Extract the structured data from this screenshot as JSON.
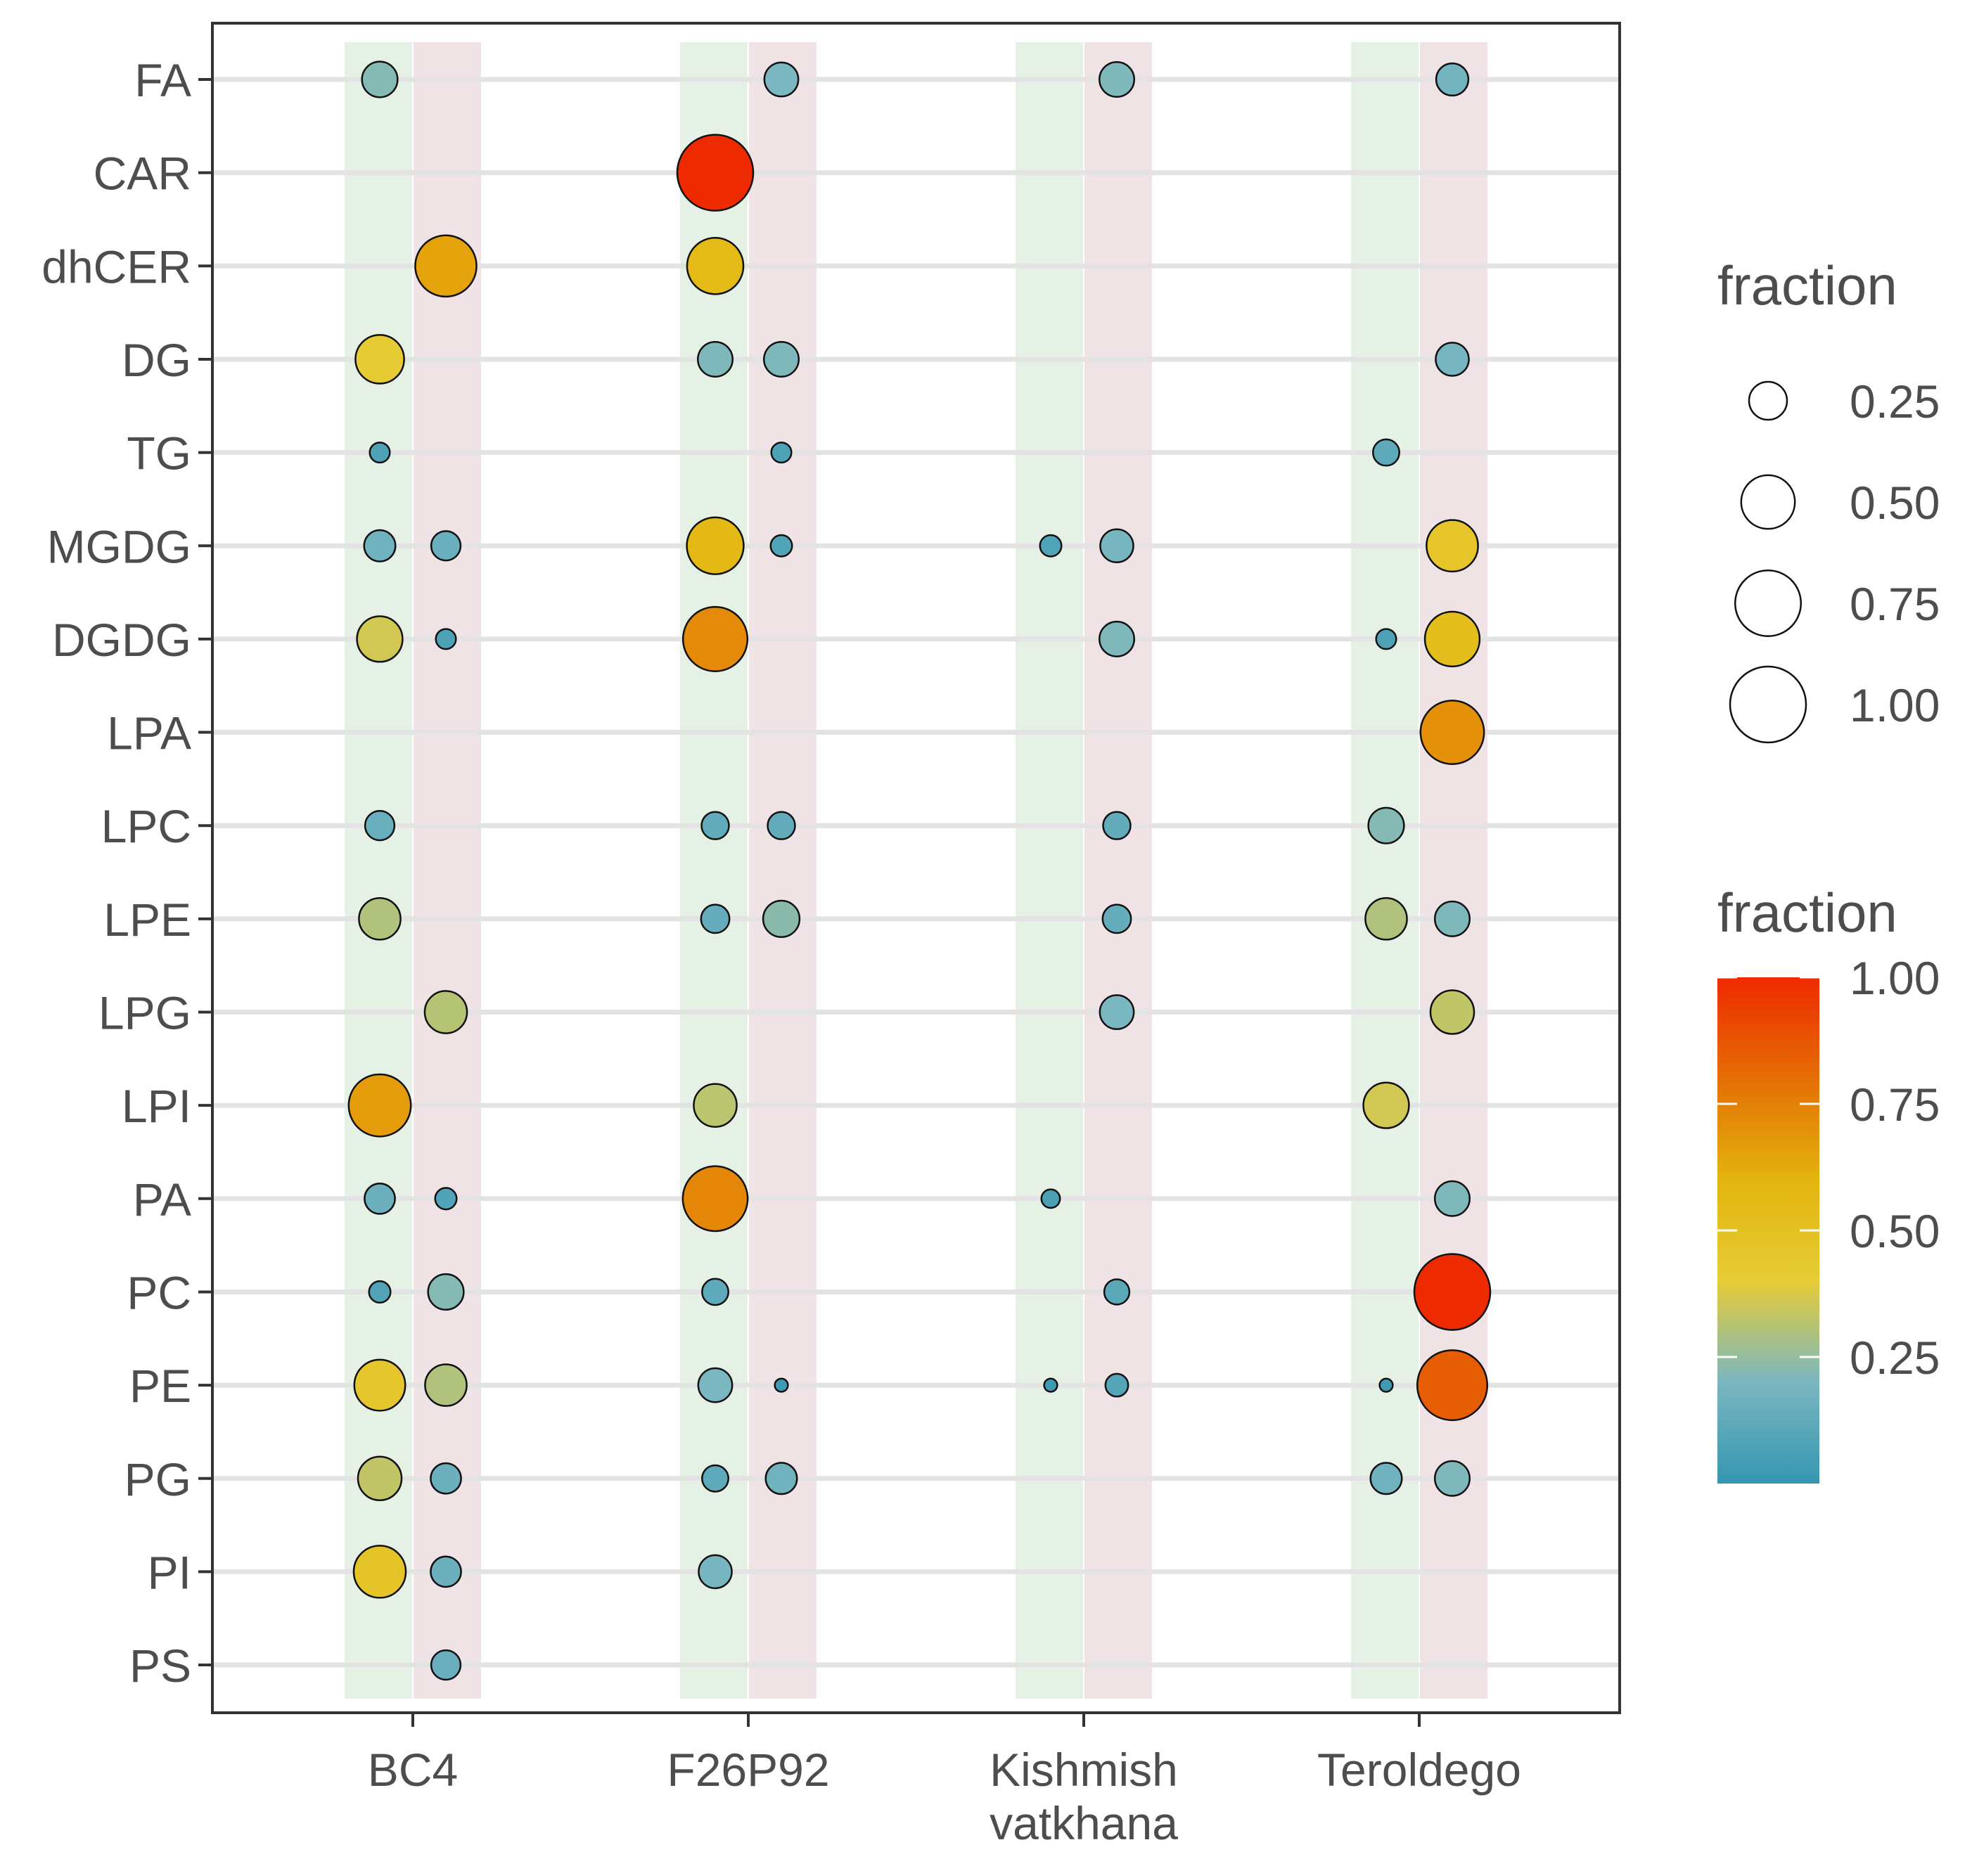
{
  "chart_data": {
    "type": "scatter",
    "title": "",
    "xlabel": "",
    "ylabel": "",
    "x_categories": [
      "BC4",
      "F26P92",
      "Kishmish vatkhana",
      "Teroldego"
    ],
    "x_tick_lines": [
      [
        "BC4"
      ],
      [
        "F26P92"
      ],
      [
        "Kishmish",
        "vatkhana"
      ],
      [
        "Teroldego"
      ]
    ],
    "y_categories": [
      "FA",
      "CAR",
      "dhCER",
      "DG",
      "TG",
      "MGDG",
      "DGDG",
      "LPA",
      "LPC",
      "LPE",
      "LPG",
      "LPI",
      "PA",
      "PC",
      "PE",
      "PG",
      "PI",
      "PS"
    ],
    "subgroups": [
      "left",
      "right"
    ],
    "subgroup_band_colors": {
      "left": "#e6f1e6",
      "right": "#f0e3e5"
    },
    "series": [
      {
        "x": "BC4",
        "sub": "left",
        "points": [
          {
            "y": "FA",
            "fraction": 0.22
          },
          {
            "y": "DG",
            "fraction": 0.41
          },
          {
            "y": "TG",
            "fraction": 0.07
          },
          {
            "y": "MGDG",
            "fraction": 0.17
          },
          {
            "y": "DGDG",
            "fraction": 0.36
          },
          {
            "y": "LPC",
            "fraction": 0.15
          },
          {
            "y": "LPE",
            "fraction": 0.3
          },
          {
            "y": "LPI",
            "fraction": 0.67
          },
          {
            "y": "PA",
            "fraction": 0.16
          },
          {
            "y": "PC",
            "fraction": 0.08
          },
          {
            "y": "PE",
            "fraction": 0.45
          },
          {
            "y": "PG",
            "fraction": 0.33
          },
          {
            "y": "PI",
            "fraction": 0.47
          }
        ]
      },
      {
        "x": "BC4",
        "sub": "right",
        "points": [
          {
            "y": "dhCER",
            "fraction": 0.65
          },
          {
            "y": "MGDG",
            "fraction": 0.15
          },
          {
            "y": "DGDG",
            "fraction": 0.07
          },
          {
            "y": "LPG",
            "fraction": 0.31
          },
          {
            "y": "PA",
            "fraction": 0.08
          },
          {
            "y": "PC",
            "fraction": 0.22
          },
          {
            "y": "PE",
            "fraction": 0.3
          },
          {
            "y": "PG",
            "fraction": 0.16
          },
          {
            "y": "PI",
            "fraction": 0.16
          },
          {
            "y": "PS",
            "fraction": 0.15
          }
        ]
      },
      {
        "x": "F26P92",
        "sub": "left",
        "points": [
          {
            "y": "CAR",
            "fraction": 1.0
          },
          {
            "y": "dhCER",
            "fraction": 0.55
          },
          {
            "y": "DG",
            "fraction": 0.21
          },
          {
            "y": "MGDG",
            "fraction": 0.56
          },
          {
            "y": "DGDG",
            "fraction": 0.72
          },
          {
            "y": "LPC",
            "fraction": 0.13
          },
          {
            "y": "LPE",
            "fraction": 0.14
          },
          {
            "y": "LPI",
            "fraction": 0.32
          },
          {
            "y": "PA",
            "fraction": 0.73
          },
          {
            "y": "PC",
            "fraction": 0.12
          },
          {
            "y": "PE",
            "fraction": 0.2
          },
          {
            "y": "PG",
            "fraction": 0.12
          },
          {
            "y": "PI",
            "fraction": 0.19
          }
        ]
      },
      {
        "x": "F26P92",
        "sub": "right",
        "points": [
          {
            "y": "FA",
            "fraction": 0.2
          },
          {
            "y": "DG",
            "fraction": 0.21
          },
          {
            "y": "TG",
            "fraction": 0.07
          },
          {
            "y": "MGDG",
            "fraction": 0.08
          },
          {
            "y": "LPC",
            "fraction": 0.13
          },
          {
            "y": "LPE",
            "fraction": 0.23
          },
          {
            "y": "PE",
            "fraction": 0.03
          },
          {
            "y": "PG",
            "fraction": 0.17
          }
        ]
      },
      {
        "x": "Kishmish vatkhana",
        "sub": "left",
        "points": [
          {
            "y": "MGDG",
            "fraction": 0.08
          },
          {
            "y": "PA",
            "fraction": 0.06
          },
          {
            "y": "PE",
            "fraction": 0.03
          }
        ]
      },
      {
        "x": "Kishmish vatkhana",
        "sub": "right",
        "points": [
          {
            "y": "FA",
            "fraction": 0.21
          },
          {
            "y": "MGDG",
            "fraction": 0.19
          },
          {
            "y": "DGDG",
            "fraction": 0.21
          },
          {
            "y": "LPC",
            "fraction": 0.13
          },
          {
            "y": "LPE",
            "fraction": 0.14
          },
          {
            "y": "LPG",
            "fraction": 0.2
          },
          {
            "y": "PC",
            "fraction": 0.11
          },
          {
            "y": "PE",
            "fraction": 0.09
          }
        ]
      },
      {
        "x": "Teroldego",
        "sub": "left",
        "points": [
          {
            "y": "TG",
            "fraction": 0.12
          },
          {
            "y": "DGDG",
            "fraction": 0.07
          },
          {
            "y": "LPC",
            "fraction": 0.22
          },
          {
            "y": "LPE",
            "fraction": 0.3
          },
          {
            "y": "LPI",
            "fraction": 0.36
          },
          {
            "y": "PE",
            "fraction": 0.03
          },
          {
            "y": "PG",
            "fraction": 0.17
          }
        ]
      },
      {
        "x": "Teroldego",
        "sub": "right",
        "points": [
          {
            "y": "FA",
            "fraction": 0.18
          },
          {
            "y": "DG",
            "fraction": 0.19
          },
          {
            "y": "MGDG",
            "fraction": 0.46
          },
          {
            "y": "DGDG",
            "fraction": 0.52
          },
          {
            "y": "LPA",
            "fraction": 0.7
          },
          {
            "y": "LPE",
            "fraction": 0.21
          },
          {
            "y": "LPG",
            "fraction": 0.33
          },
          {
            "y": "PA",
            "fraction": 0.21
          },
          {
            "y": "PC",
            "fraction": 1.0
          },
          {
            "y": "PE",
            "fraction": 0.85
          },
          {
            "y": "PG",
            "fraction": 0.21
          }
        ]
      }
    ],
    "size_legend": {
      "title": "fraction",
      "values": [
        0.25,
        0.5,
        0.75,
        1.0
      ],
      "labels": [
        "0.25",
        "0.50",
        "0.75",
        "1.00"
      ]
    },
    "color_legend": {
      "title": "fraction",
      "range": [
        0.0,
        1.0
      ],
      "ticks": [
        0.25,
        0.5,
        0.75,
        1.0
      ],
      "labels": [
        "0.25",
        "0.50",
        "0.75",
        "1.00"
      ],
      "gradient": [
        "#3596b0",
        "#7ab7c1",
        "#e6cc36",
        "#e3b40d",
        "#e56e05",
        "#ee2a00"
      ]
    },
    "legend_position": "right",
    "grid": "horizontal"
  }
}
